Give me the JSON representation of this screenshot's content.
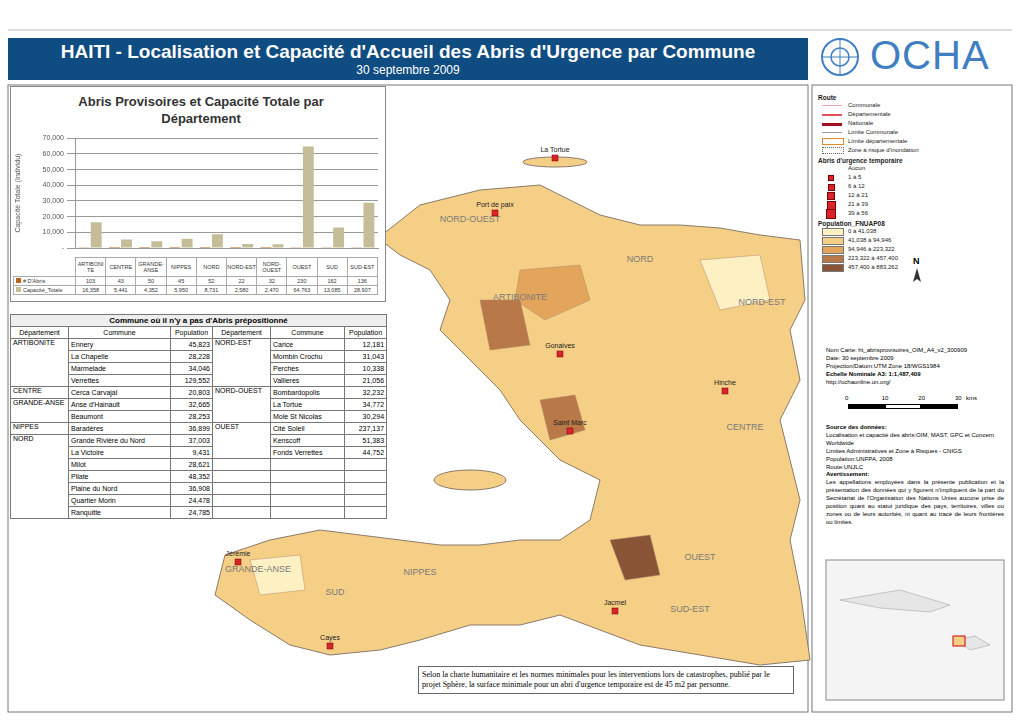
{
  "header": {
    "title": "HAITI - Localisation et Capacité d'Accueil des Abris d'Urgence par Commune",
    "date": "30 septembre 2009",
    "logo": "OCHA"
  },
  "chart_data": {
    "type": "bar",
    "title": "Abris Provisoires et Capacité Totale par Département",
    "y_label": "Capacité Totale (Individu)",
    "categories": [
      "ARTIBONITE",
      "CENTRE",
      "GRANDE-ANSE",
      "NIPPES",
      "NORD",
      "NORD-EST",
      "NORD-OUEST",
      "OUEST",
      "SUD",
      "SUD-EST"
    ],
    "series": [
      {
        "name": "# D'Abris",
        "color": "#b5651d",
        "values": [
          103,
          43,
          50,
          45,
          52,
          22,
          32,
          230,
          162,
          136
        ]
      },
      {
        "name": "Capacité_Totale",
        "color": "#c4bd97",
        "values": [
          16358,
          5441,
          4352,
          5950,
          8731,
          2580,
          2470,
          64763,
          13085,
          28907
        ],
        "value_labels": [
          "16,358",
          "5,441",
          "4,352",
          "5,950",
          "8,731",
          "2,580",
          "2,470",
          "64,763",
          "13,085",
          "28,907"
        ]
      }
    ],
    "ylim": [
      0,
      70000
    ],
    "yticks": [
      {
        "value": 0,
        "label": "-"
      },
      {
        "value": 10000,
        "label": "10,000"
      },
      {
        "value": 20000,
        "label": "20,000"
      },
      {
        "value": 30000,
        "label": "30,000"
      },
      {
        "value": 40000,
        "label": "40,000"
      },
      {
        "value": 50000,
        "label": "50,000"
      },
      {
        "value": 60000,
        "label": "60,000"
      },
      {
        "value": 70000,
        "label": "70,000"
      }
    ],
    "grid": true,
    "tick_labels": "y"
  },
  "table": {
    "title": "Commune où il n'y a pas d'Abris prépositionné",
    "columns": [
      "Département",
      "Commune",
      "Population"
    ],
    "left": [
      {
        "department": "ARTIBONITE",
        "rows": [
          [
            "Ennery",
            "45,823"
          ],
          [
            "La Chapelle",
            "28,228"
          ],
          [
            "Marmelade",
            "34,046"
          ],
          [
            "Verrettes",
            "129,552"
          ]
        ]
      },
      {
        "department": "CENTRE",
        "rows": [
          [
            "Cerca Carvajal",
            "20,803"
          ]
        ]
      },
      {
        "department": "GRANDE-ANSE",
        "rows": [
          [
            "Anse d'Hainault",
            "32,665"
          ],
          [
            "Beaumont",
            "28,253"
          ]
        ]
      },
      {
        "department": "NIPPES",
        "rows": [
          [
            "Baradères",
            "36,899"
          ]
        ]
      },
      {
        "department": "NORD",
        "rows": [
          [
            "Grande Rivière du Nord",
            "37,003"
          ],
          [
            "La Victoire",
            "9,431"
          ],
          [
            "Milot",
            "28,621"
          ],
          [
            "Pilate",
            "48,352"
          ],
          [
            "Plaine du Nord",
            "36,908"
          ],
          [
            "Quartier Morin",
            "24,478"
          ],
          [
            "Ranquitte",
            "24,785"
          ]
        ]
      }
    ],
    "right": [
      {
        "department": "NORD-EST",
        "rows": [
          [
            "Carice",
            "12,181"
          ],
          [
            "Mombin Crochu",
            "31,043"
          ],
          [
            "Perches",
            "10,338"
          ],
          [
            "Vallieres",
            "21,056"
          ]
        ]
      },
      {
        "department": "NORD-OUEST",
        "rows": [
          [
            "Bombardopolis",
            "32,232"
          ],
          [
            "La Tortue",
            "34,772"
          ],
          [
            "Mole St Nicolas",
            "30,294"
          ]
        ]
      },
      {
        "department": "OUEST",
        "rows": [
          [
            "Cité Soleil",
            "237,137"
          ],
          [
            "Kenscoff",
            "51,383"
          ],
          [
            "Fonds Verrettes",
            "44,752"
          ]
        ]
      }
    ]
  },
  "legend": {
    "route_title": "Route",
    "routes": [
      {
        "label": "Communale",
        "color": "#f4a6b0"
      },
      {
        "label": "Départementale",
        "color": "#e0505a"
      },
      {
        "label": "Nationale",
        "color": "#a01020"
      }
    ],
    "limits": [
      "Limite Communale",
      "Limite départementale",
      "Zone à risque d'inondation"
    ],
    "shelter_title": "Abris d'urgence temporaire",
    "shelter_classes": [
      "Aucun",
      "1 à 5",
      "6 à 12",
      "12 à 21",
      "21 à 39",
      "39 à 56"
    ],
    "population_title": "Population_FNUAP08",
    "population_classes": [
      {
        "label": "0 à 41,038",
        "color": "#fdf1c4"
      },
      {
        "label": "41,038 à 94,946",
        "color": "#f6cf86"
      },
      {
        "label": "94,946 à 223,322",
        "color": "#e3a45c"
      },
      {
        "label": "223,322 à 457,400",
        "color": "#b97848"
      },
      {
        "label": "457,400 à 883,262",
        "color": "#8a5437"
      }
    ]
  },
  "map": {
    "departments": [
      "NORD-OUEST",
      "NORD",
      "NORD-EST",
      "ARTIBONITE",
      "CENTRE",
      "OUEST",
      "SUD-EST",
      "NIPPES",
      "GRANDE-ANSE",
      "SUD"
    ],
    "places": [
      "La Tortue",
      "Port de paix",
      "Gonaives",
      "Saint Marc",
      "Hinche",
      "Jacmel",
      "Jérémie",
      "Cayes"
    ]
  },
  "north": "N",
  "info": [
    "Nom Carte: ht_abrisprovisoires_OIM_A4_v2_300909",
    "Date: 30 septembre 2009",
    "Projection/Datum:UTM Zone 18/WGS1984",
    "Echelle Nominale A3: 1:1,487,409",
    "http://ochaonline.un.org/"
  ],
  "scale": {
    "ticks": [
      0,
      10,
      20,
      30
    ],
    "unit": "kms"
  },
  "sources": {
    "title": "Source des données:",
    "lines": [
      "Localisation et capacité des abris:OIM, MAST, GPC et Concern Worldwide",
      "Limites Administratives et Zone à Risques - CNIGS",
      "Population:UNFPA, 2008",
      "Route:UNJLC"
    ]
  },
  "disclaimer": {
    "title": "Avertissement:",
    "text": "Les appellations employées dans la présente publication et la présentation des données qui y figurent n'impliquent de la part du Secrétariat de l'Organisation des Nations Unies aucune prise de position quant au statut juridique des pays, territoires, villes ou zones ou de leurs autorités, ni quant au tracé de leurs frontières ou limites."
  },
  "footnote": "Selon la charte humanitaire et les normes minimales pour les interventions lors de catastrophes, publié par le projet Sphère, la surface minimale pour un abri d'urgence temporaire est de 45 m2 par personne."
}
